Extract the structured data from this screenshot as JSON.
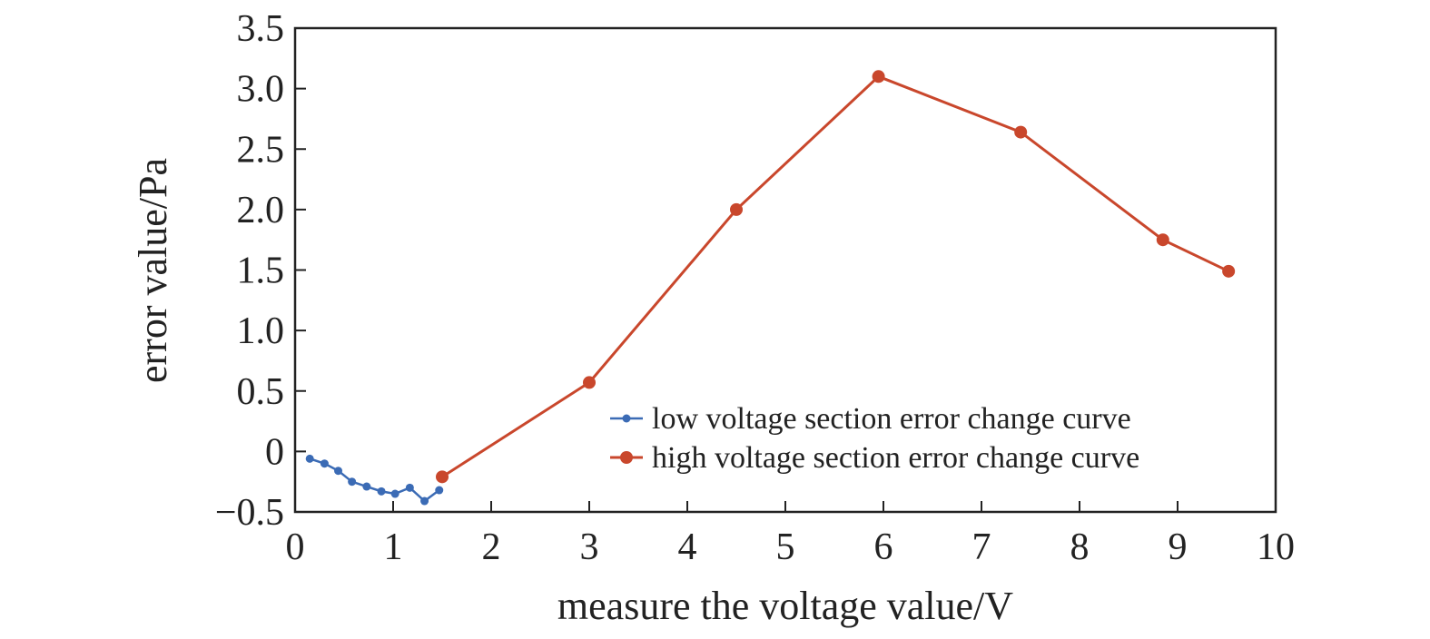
{
  "chart_data": {
    "type": "line",
    "title": "",
    "xlabel": "measure the voltage value/V",
    "ylabel": "error value/Pa",
    "xlim": [
      0,
      10
    ],
    "ylim": [
      -0.5,
      3.5
    ],
    "xticks": [
      "0",
      "1",
      "2",
      "3",
      "4",
      "5",
      "6",
      "7",
      "8",
      "9",
      "10"
    ],
    "yticks": [
      "−0.5",
      "0",
      "0.5",
      "1.0",
      "1.5",
      "2.0",
      "2.5",
      "3.0",
      "3.5"
    ],
    "grid": false,
    "legend_position": "bottom-right",
    "series": [
      {
        "name": "low voltage section error change curve",
        "color": "#3b6bb5",
        "marker": "small-circle",
        "x": [
          0.15,
          0.3,
          0.44,
          0.58,
          0.73,
          0.88,
          1.02,
          1.17,
          1.32,
          1.47
        ],
        "y": [
          -0.06,
          -0.1,
          -0.16,
          -0.25,
          -0.29,
          -0.33,
          -0.35,
          -0.3,
          -0.41,
          -0.32
        ]
      },
      {
        "name": "high voltage section error change curve",
        "color": "#c9472c",
        "marker": "circle",
        "x": [
          1.5,
          3.0,
          4.5,
          5.95,
          7.4,
          8.85,
          9.52
        ],
        "y": [
          -0.21,
          0.57,
          2.0,
          3.1,
          2.64,
          1.75,
          1.49
        ]
      }
    ]
  }
}
